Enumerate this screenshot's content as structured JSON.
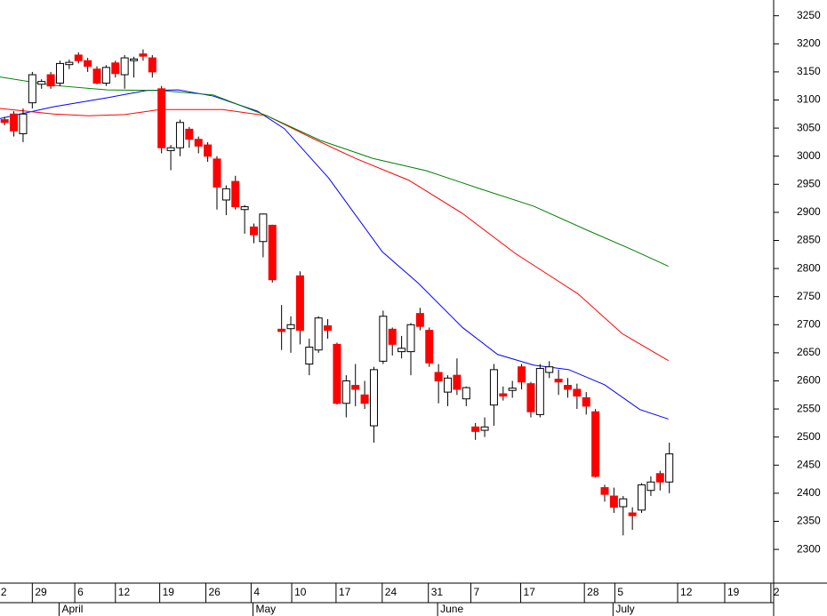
{
  "chart_data": {
    "type": "candlestick",
    "xlim": [
      -0.5,
      83.3
    ],
    "ylim": [
      2240,
      3278
    ],
    "yticks": [
      2300,
      2350,
      2400,
      2450,
      2500,
      2550,
      2600,
      2650,
      2700,
      2750,
      2800,
      2850,
      2900,
      2950,
      3000,
      3050,
      3100,
      3150,
      3200,
      3250
    ],
    "xticks": [
      {
        "value": -0.7,
        "label": "2"
      },
      {
        "value": 3.0,
        "label": "29"
      },
      {
        "value": 7.6,
        "label": "6"
      },
      {
        "value": 12.0,
        "label": "12"
      },
      {
        "value": 16.8,
        "label": "19"
      },
      {
        "value": 21.8,
        "label": "26"
      },
      {
        "value": 26.7,
        "label": "4"
      },
      {
        "value": 31.1,
        "label": "10"
      },
      {
        "value": 35.9,
        "label": "17"
      },
      {
        "value": 40.9,
        "label": "24"
      },
      {
        "value": 45.9,
        "label": "31"
      },
      {
        "value": 50.5,
        "label": "7"
      },
      {
        "value": 55.9,
        "label": "17"
      },
      {
        "value": 62.8,
        "label": "28"
      },
      {
        "value": 66.1,
        "label": "5"
      },
      {
        "value": 72.9,
        "label": "12"
      },
      {
        "value": 78.0,
        "label": "19"
      },
      {
        "value": 83.0,
        "label": "2"
      }
    ],
    "month_ticks": [
      {
        "value": 5.9,
        "label": "April"
      },
      {
        "value": 26.9,
        "label": "May"
      },
      {
        "value": 46.9,
        "label": "June"
      },
      {
        "value": 65.9,
        "label": "July"
      }
    ],
    "up_color": "#ffffff",
    "down_color": "#ff0000",
    "candles": {
      "open": [
        3065,
        3075,
        3040,
        3095,
        3128,
        3145,
        3130,
        3163,
        3180,
        3170,
        3155,
        3130,
        3166,
        3145,
        3170,
        3182,
        3175,
        3120,
        3010,
        3015,
        3048,
        3030,
        3020,
        2995,
        2922,
        2955,
        2905,
        2874,
        2848,
        2877,
        2692,
        2693,
        2787,
        2630,
        2655,
        2698,
        2665,
        2560,
        2592,
        2575,
        2520,
        2635,
        2692,
        2652,
        2652,
        2720,
        2690,
        2615,
        2580,
        2610,
        2568,
        2518,
        2512,
        2557,
        2577,
        2583,
        2625,
        2595,
        2540,
        2615,
        2603,
        2592,
        2585,
        2570,
        2545,
        2410,
        2395,
        2376,
        2365,
        2370,
        2405,
        2435,
        2420
      ],
      "high": [
        3070,
        3080,
        3085,
        3150,
        3137,
        3150,
        3170,
        3172,
        3185,
        3175,
        3160,
        3162,
        3170,
        3180,
        3177,
        3190,
        3180,
        3125,
        3020,
        3065,
        3052,
        3035,
        3025,
        3000,
        2948,
        2965,
        2913,
        2880,
        2898,
        2878,
        2735,
        2715,
        2795,
        2675,
        2715,
        2710,
        2668,
        2610,
        2630,
        2600,
        2625,
        2725,
        2695,
        2680,
        2703,
        2730,
        2695,
        2630,
        2610,
        2640,
        2590,
        2525,
        2535,
        2630,
        2590,
        2600,
        2630,
        2598,
        2630,
        2635,
        2620,
        2605,
        2595,
        2580,
        2550,
        2415,
        2410,
        2395,
        2375,
        2418,
        2430,
        2440,
        2490
      ],
      "low": [
        3055,
        3035,
        3025,
        3085,
        3120,
        3120,
        3125,
        3155,
        3165,
        3150,
        3128,
        3125,
        3140,
        3120,
        3140,
        3170,
        3140,
        3005,
        2975,
        3000,
        3015,
        3005,
        2990,
        2905,
        2895,
        2905,
        2862,
        2845,
        2820,
        2775,
        2655,
        2650,
        2665,
        2610,
        2650,
        2675,
        2558,
        2535,
        2555,
        2550,
        2490,
        2630,
        2645,
        2640,
        2610,
        2690,
        2625,
        2560,
        2555,
        2575,
        2555,
        2495,
        2500,
        2520,
        2565,
        2570,
        2585,
        2535,
        2535,
        2605,
        2575,
        2570,
        2550,
        2540,
        2428,
        2385,
        2365,
        2325,
        2335,
        2365,
        2395,
        2405,
        2400
      ],
      "close": [
        3060,
        3045,
        3075,
        3145,
        3133,
        3125,
        3165,
        3167,
        3170,
        3160,
        3130,
        3158,
        3147,
        3175,
        3173,
        3178,
        3150,
        3015,
        3015,
        3060,
        3030,
        3018,
        3000,
        2945,
        2942,
        2910,
        2910,
        2860,
        2897,
        2780,
        2688,
        2700,
        2690,
        2660,
        2712,
        2690,
        2560,
        2600,
        2585,
        2560,
        2620,
        2715,
        2665,
        2658,
        2700,
        2697,
        2632,
        2600,
        2605,
        2585,
        2588,
        2510,
        2518,
        2620,
        2573,
        2587,
        2598,
        2545,
        2622,
        2625,
        2598,
        2585,
        2573,
        2555,
        2430,
        2398,
        2375,
        2390,
        2360,
        2415,
        2420,
        2420,
        2470
      ]
    },
    "series": [
      {
        "color": "#0000ff",
        "x": [
          -0.5,
          5.3,
          11.1,
          15.4,
          18.8,
          22.6,
          27.4,
          30.3,
          35.1,
          40.9,
          44.8,
          49.6,
          53.4,
          57.3,
          61.1,
          65.0,
          68.8,
          71.9
        ],
        "values": [
          3067,
          3088,
          3104,
          3117,
          3118,
          3107,
          3080,
          3049,
          2961,
          2830,
          2774,
          2695,
          2647,
          2628,
          2620,
          2593,
          2549,
          2532
        ]
      },
      {
        "color": "#ff0000",
        "x": [
          -0.5,
          5.3,
          9.1,
          13.0,
          16.8,
          23.6,
          28.4,
          33.2,
          38.0,
          43.8,
          49.6,
          55.3,
          62.1,
          66.9,
          71.9
        ],
        "values": [
          3085,
          3075,
          3072,
          3074,
          3083,
          3083,
          3072,
          3033,
          2996,
          2957,
          2898,
          2827,
          2755,
          2684,
          2636
        ]
      },
      {
        "color": "#008000",
        "x": [
          -0.5,
          5.3,
          11.1,
          16.8,
          22.6,
          28.4,
          34.2,
          39.9,
          45.7,
          51.5,
          57.3,
          63.0,
          67.9,
          71.9
        ],
        "values": [
          3141,
          3126,
          3118,
          3117,
          3109,
          3072,
          3028,
          2996,
          2974,
          2942,
          2911,
          2869,
          2834,
          2804
        ]
      }
    ]
  }
}
